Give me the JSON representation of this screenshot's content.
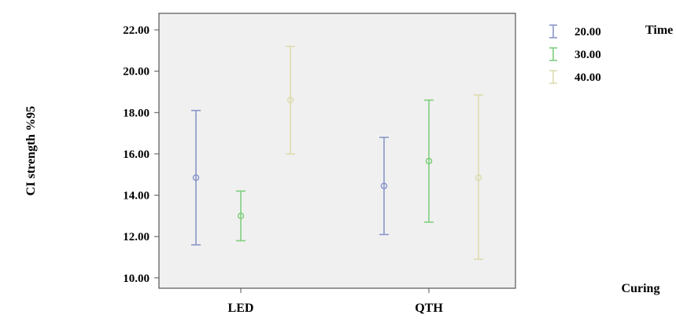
{
  "chart_data": {
    "type": "errorbar",
    "title": "",
    "xlabel": "Curing",
    "ylabel": "CI strength %95",
    "categories": [
      "LED",
      "QTH"
    ],
    "yticks": [
      "10.00",
      "12.00",
      "14.00",
      "16.00",
      "18.00",
      "20.00",
      "22.00"
    ],
    "ylim": [
      9.5,
      22.8
    ],
    "grid": false,
    "legend": {
      "title": "Time",
      "placement": "top-right",
      "entries": [
        "20.00",
        "30.00",
        "40.00"
      ]
    },
    "series": [
      {
        "name": "20.00",
        "color": "#8a96c9",
        "points": [
          {
            "category": "LED",
            "mean": 14.85,
            "lower": 11.6,
            "upper": 18.1
          },
          {
            "category": "QTH",
            "mean": 14.45,
            "lower": 12.1,
            "upper": 16.8
          }
        ]
      },
      {
        "name": "30.00",
        "color": "#7fcf7f",
        "points": [
          {
            "category": "LED",
            "mean": 13.0,
            "lower": 11.8,
            "upper": 14.2
          },
          {
            "category": "QTH",
            "mean": 15.65,
            "lower": 12.7,
            "upper": 18.6
          }
        ]
      },
      {
        "name": "40.00",
        "color": "#dedcb0",
        "points": [
          {
            "category": "LED",
            "mean": 18.6,
            "lower": 16.0,
            "upper": 21.2
          },
          {
            "category": "QTH",
            "mean": 14.85,
            "lower": 10.9,
            "upper": 18.85
          }
        ]
      }
    ]
  }
}
